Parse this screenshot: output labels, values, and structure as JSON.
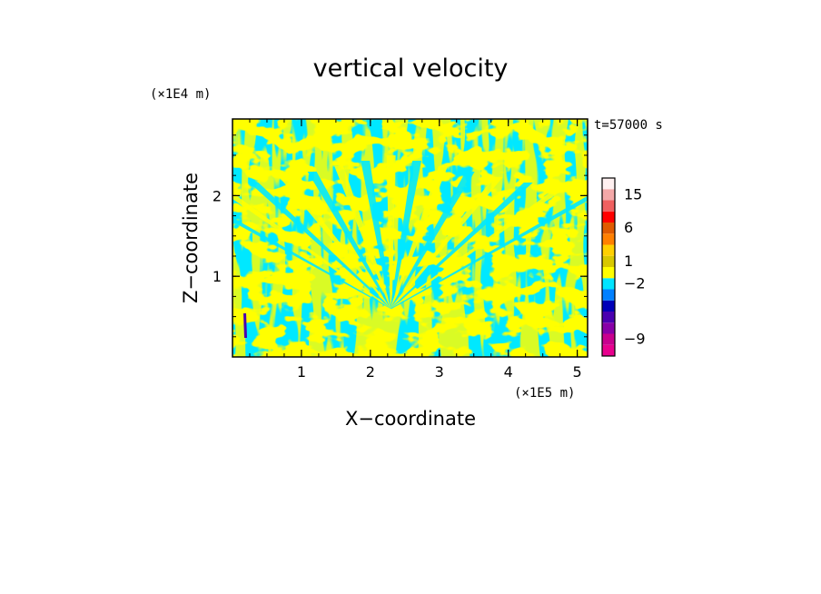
{
  "chart_data": {
    "type": "heatmap",
    "title": "vertical velocity",
    "xlabel": "X−coordinate",
    "ylabel": "Z−coordinate",
    "x_unit": "(×1E5 m)",
    "y_unit": "(×1E4 m)",
    "time_label": "t=57000 s",
    "xlim": [
      0,
      5.15
    ],
    "ylim": [
      0,
      2.95
    ],
    "x_ticks": [
      {
        "value": 1,
        "label": "1"
      },
      {
        "value": 2,
        "label": "2"
      },
      {
        "value": 3,
        "label": "3"
      },
      {
        "value": 4,
        "label": "4"
      },
      {
        "value": 5,
        "label": "5"
      }
    ],
    "y_ticks": [
      {
        "value": 1,
        "label": "1"
      },
      {
        "value": 2,
        "label": "2"
      }
    ],
    "colorbar": {
      "levels": [
        {
          "color": "#e8008e"
        },
        {
          "color": "#c8008e"
        },
        {
          "color": "#8800a8"
        },
        {
          "color": "#4a00b0"
        },
        {
          "color": "#0000b8"
        },
        {
          "color": "#0080ff"
        },
        {
          "color": "#00e4ff"
        },
        {
          "color": "#ffff00"
        },
        {
          "color": "#d8c800"
        },
        {
          "color": "#ffd000"
        },
        {
          "color": "#ff8000"
        },
        {
          "color": "#e05a00"
        },
        {
          "color": "#ff0000"
        },
        {
          "color": "#f06060"
        },
        {
          "color": "#f4a8a8"
        },
        {
          "color": "#fff0f0"
        }
      ],
      "labels": [
        {
          "text": "15",
          "level_index": 14
        },
        {
          "text": "6",
          "level_index": 11
        },
        {
          "text": "1",
          "level_index": 8
        },
        {
          "text": "−2",
          "level_index": 6
        },
        {
          "text": "−9",
          "level_index": 1
        }
      ]
    },
    "field_colors": {
      "positive": "#ffff00",
      "negative": "#00e8ff",
      "strong_negative": "#4a00b0"
    }
  }
}
